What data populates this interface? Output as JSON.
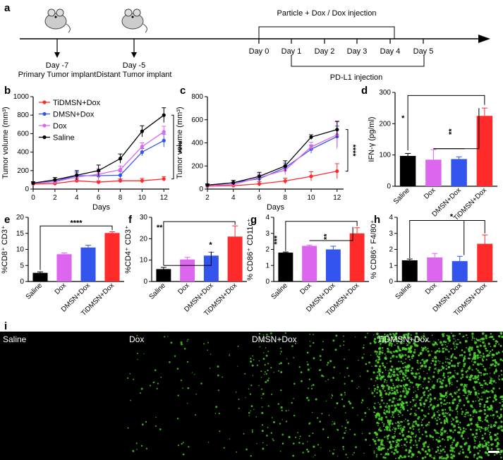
{
  "panel_labels": [
    "a",
    "b",
    "c",
    "d",
    "e",
    "f",
    "g",
    "h",
    "i"
  ],
  "timeline": {
    "days_left": [
      {
        "line1": "Day -7",
        "line2": "Primary Tumor implant"
      },
      {
        "line1": "Day -5",
        "line2": "Distant Tumor implant"
      }
    ],
    "days": [
      "Day 0",
      "Day 1",
      "Day 2",
      "Day 3",
      "Day 4",
      "Day 5"
    ],
    "top_label": "Particle + Dox / Dox injection",
    "bottom_label": "PD-L1 injection"
  },
  "colors": {
    "TiDMSN+Dox": "#ff2a2a",
    "DMSN+Dox": "#3355ee",
    "Dox": "#dd66ee",
    "Saline": "#000000"
  },
  "chart_data": [
    {
      "panel": "b",
      "type": "line",
      "xlabel": "Days",
      "ylabel": "Tumor volume (mm³)",
      "x": [
        0,
        2,
        4,
        6,
        8,
        10,
        12
      ],
      "xlim": [
        0,
        12.5
      ],
      "ylim": [
        0,
        1000
      ],
      "yticks": [
        0,
        200,
        400,
        600,
        800,
        1000
      ],
      "legend": [
        "TiDMSN+Dox",
        "DMSN+Dox",
        "Dox",
        "Saline"
      ],
      "annotation": "****",
      "series": [
        {
          "name": "TiDMSN+Dox",
          "values": [
            55,
            60,
            90,
            75,
            90,
            90,
            110
          ],
          "err": [
            15,
            15,
            20,
            15,
            20,
            25,
            25
          ]
        },
        {
          "name": "DMSN+Dox",
          "values": [
            65,
            85,
            145,
            145,
            150,
            400,
            525
          ],
          "err": [
            15,
            20,
            40,
            45,
            40,
            40,
            70
          ]
        },
        {
          "name": "Dox",
          "values": [
            60,
            80,
            130,
            160,
            210,
            460,
            620
          ],
          "err": [
            15,
            25,
            45,
            60,
            40,
            40,
            60
          ]
        },
        {
          "name": "Saline",
          "values": [
            65,
            100,
            150,
            200,
            330,
            625,
            800
          ],
          "err": [
            15,
            25,
            50,
            60,
            50,
            60,
            80
          ]
        }
      ]
    },
    {
      "panel": "c",
      "type": "line",
      "xlabel": "Days",
      "ylabel": "Tumor volume (mm³)",
      "x": [
        2,
        4,
        6,
        8,
        10,
        12
      ],
      "xlim": [
        2,
        12.5
      ],
      "ylim": [
        0,
        800
      ],
      "yticks": [
        0,
        200,
        400,
        600,
        800
      ],
      "annotation": "****",
      "series": [
        {
          "name": "TiDMSN+Dox",
          "values": [
            25,
            30,
            45,
            70,
            110,
            155
          ],
          "err": [
            10,
            15,
            20,
            25,
            40,
            65
          ]
        },
        {
          "name": "DMSN+Dox",
          "values": [
            30,
            55,
            90,
            185,
            345,
            455
          ],
          "err": [
            10,
            20,
            30,
            40,
            35,
            90
          ]
        },
        {
          "name": "Dox",
          "values": [
            30,
            40,
            100,
            165,
            365,
            470
          ],
          "err": [
            10,
            15,
            30,
            40,
            40,
            120
          ]
        },
        {
          "name": "Saline",
          "values": [
            35,
            55,
            110,
            200,
            450,
            515
          ],
          "err": [
            10,
            20,
            35,
            45,
            20,
            70
          ]
        }
      ]
    },
    {
      "panel": "d",
      "type": "bar",
      "ylabel": "IFN-γ (pg/ml)",
      "categories": [
        "Saline",
        "Dox",
        "DMSN+Dox",
        "TiDMSN+Dox"
      ],
      "values": [
        97,
        85,
        87,
        225
      ],
      "err": [
        8,
        32,
        7,
        25
      ],
      "ylim": [
        0,
        300
      ],
      "yticks": [
        0,
        100,
        200,
        300
      ],
      "annotations": [
        "*",
        "**"
      ]
    },
    {
      "panel": "e",
      "type": "bar",
      "ylabel": "%CD8⁺ CD3⁺",
      "categories": [
        "Saline",
        "Dox",
        "DMSN+Dox",
        "TiDMSN+Dox"
      ],
      "values": [
        2.7,
        8.5,
        10.6,
        15.1
      ],
      "err": [
        0.3,
        0.4,
        0.7,
        0.4
      ],
      "ylim": [
        0,
        20
      ],
      "yticks": [
        0,
        5,
        10,
        15,
        20
      ],
      "annotations": [
        "****"
      ]
    },
    {
      "panel": "f",
      "type": "bar",
      "ylabel": "%CD4⁺ CD3⁺",
      "categories": [
        "Saline",
        "Dox",
        "DMSN+Dox",
        "TiDMSN+Dox"
      ],
      "values": [
        5.8,
        10.3,
        12.1,
        21.0
      ],
      "err": [
        0.8,
        1.0,
        1.6,
        5.0
      ],
      "ylim": [
        0,
        30
      ],
      "yticks": [
        0,
        10,
        20,
        30
      ],
      "annotations": [
        "**",
        "*"
      ]
    },
    {
      "panel": "g",
      "type": "bar",
      "ylabel": "% CD86⁺ CD11c⁺",
      "categories": [
        "Saline",
        "Dox",
        "DMSN+Dox",
        "TiDMSN+Dox"
      ],
      "values": [
        1.8,
        2.22,
        2.0,
        3.0
      ],
      "err": [
        0.04,
        0.05,
        0.2,
        0.35
      ],
      "ylim": [
        0,
        4
      ],
      "yticks": [
        0,
        1,
        2,
        3,
        4
      ],
      "annotations": [
        "***",
        "**"
      ]
    },
    {
      "panel": "h",
      "type": "bar",
      "ylabel": "% CD86⁺ F4/80⁺",
      "categories": [
        "Saline",
        "Dox",
        "DMSN+Dox",
        "TiDMSN+Dox"
      ],
      "values": [
        1.32,
        1.5,
        1.27,
        2.35
      ],
      "err": [
        0.08,
        0.25,
        0.3,
        0.55
      ],
      "ylim": [
        0,
        4
      ],
      "yticks": [
        0,
        1,
        2,
        3,
        4
      ],
      "annotations": [
        "*"
      ]
    }
  ],
  "micrographs": [
    "Saline",
    "Dox",
    "DMSN+Dox",
    "TiDMSN+Dox"
  ]
}
